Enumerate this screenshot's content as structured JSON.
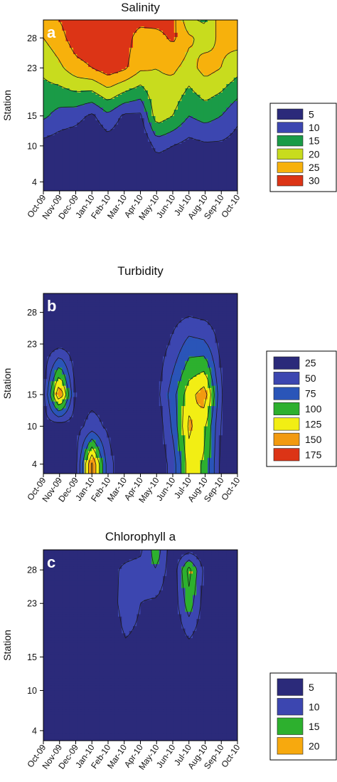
{
  "chart_data": [
    {
      "type": "heatmap",
      "title": "Salinity",
      "panel_label": "a",
      "ylabel": "Station",
      "x_ticks": [
        "Oct-09",
        "Nov-09",
        "Dec-09",
        "Jan-10",
        "Feb-10",
        "Mar-10",
        "Apr-10",
        "May-10",
        "Jun-10",
        "Jul-10",
        "Aug-10",
        "Sep-10",
        "Oct-10"
      ],
      "y_ticks": [
        4,
        10,
        15,
        23,
        28
      ],
      "ylim": [
        2.5,
        31
      ],
      "legend_position": "right",
      "levels": [
        {
          "label": "5",
          "color": "#2b2a7a"
        },
        {
          "label": "10",
          "color": "#3c46b0"
        },
        {
          "label": "15",
          "color": "#1a9b47"
        },
        {
          "label": "20",
          "color": "#c8dc1e"
        },
        {
          "label": "25",
          "color": "#f7b10c"
        },
        {
          "label": "30",
          "color": "#dc3416"
        }
      ],
      "stations": [
        4,
        10,
        15,
        23,
        28,
        31
      ],
      "values": [
        [
          3,
          3,
          3,
          3,
          3,
          3,
          3,
          3,
          3,
          3,
          3,
          3,
          3
        ],
        [
          8,
          7,
          6,
          4,
          7,
          5,
          4,
          12,
          10,
          8,
          9,
          9,
          8
        ],
        [
          16,
          13,
          12,
          9,
          14,
          9,
          9,
          23,
          20,
          15,
          17,
          15,
          11
        ],
        [
          21,
          24,
          28,
          30,
          33,
          31,
          26,
          25,
          26,
          23,
          27,
          25,
          22
        ],
        [
          25,
          28,
          33,
          34,
          33,
          33,
          27,
          28,
          31,
          26,
          23,
          26,
          27
        ],
        [
          28,
          30,
          34,
          35,
          34,
          33,
          32,
          32,
          32,
          21,
          19,
          28,
          30
        ]
      ]
    },
    {
      "type": "heatmap",
      "title": "Turbidity",
      "panel_label": "b",
      "ylabel": "Station",
      "x_ticks": [
        "Oct-09",
        "Nov-09",
        "Dec-09",
        "Jan-10",
        "Feb-10",
        "Mar-10",
        "Apr-10",
        "May-10",
        "Jun-10",
        "Jul-10",
        "Aug-10",
        "Sep-10",
        "Oct-10"
      ],
      "y_ticks": [
        4,
        10,
        15,
        23,
        28
      ],
      "ylim": [
        2.5,
        31
      ],
      "legend_position": "right",
      "levels": [
        {
          "label": "25",
          "color": "#2b2a7a"
        },
        {
          "label": "50",
          "color": "#3c46b0"
        },
        {
          "label": "75",
          "color": "#2a55b8"
        },
        {
          "label": "100",
          "color": "#2db02e"
        },
        {
          "label": "125",
          "color": "#f2ee14"
        },
        {
          "label": "150",
          "color": "#f29a10"
        },
        {
          "label": "175",
          "color": "#dc3416"
        }
      ],
      "stations": [
        4,
        10,
        15,
        23,
        28,
        31
      ],
      "values": [
        [
          30,
          30,
          40,
          180,
          60,
          30,
          25,
          30,
          60,
          140,
          120,
          40,
          30
        ],
        [
          40,
          35,
          40,
          60,
          45,
          35,
          30,
          30,
          80,
          155,
          130,
          45,
          35
        ],
        [
          40,
          180,
          40,
          40,
          40,
          35,
          30,
          40,
          90,
          140,
          165,
          50,
          35
        ],
        [
          35,
          40,
          35,
          35,
          35,
          30,
          30,
          35,
          55,
          85,
          80,
          40,
          30
        ],
        [
          30,
          30,
          30,
          40,
          30,
          30,
          30,
          30,
          40,
          45,
          40,
          35,
          30
        ],
        [
          30,
          30,
          30,
          30,
          30,
          30,
          30,
          30,
          30,
          30,
          30,
          30,
          30
        ]
      ]
    },
    {
      "type": "heatmap",
      "title": "Chlorophyll a",
      "panel_label": "c",
      "ylabel": "Station",
      "x_ticks": [
        "Oct-09",
        "Nov-09",
        "Dec-09",
        "Jan-10",
        "Feb-10",
        "Mar-10",
        "Apr-10",
        "May-10",
        "Jun-10",
        "Jul-10",
        "Aug-10",
        "Sep-10",
        "Oct-10"
      ],
      "y_ticks": [
        4,
        10,
        15,
        23,
        28
      ],
      "ylim": [
        2.5,
        31
      ],
      "legend_position": "right",
      "levels": [
        {
          "label": "5",
          "color": "#2b2a7a"
        },
        {
          "label": "10",
          "color": "#3c46b0"
        },
        {
          "label": "15",
          "color": "#2db02e"
        },
        {
          "label": "20",
          "color": "#f7a90e"
        }
      ],
      "stations": [
        4,
        10,
        15,
        23,
        28,
        31
      ],
      "values": [
        [
          4,
          4,
          4,
          4,
          4,
          4,
          4,
          4,
          4,
          4,
          4,
          4,
          4
        ],
        [
          4,
          6,
          4,
          4,
          4,
          6,
          5,
          4,
          4,
          8,
          5,
          4,
          4
        ],
        [
          5,
          7,
          7,
          5,
          5,
          9,
          9,
          6,
          5,
          6,
          6,
          5,
          4
        ],
        [
          5,
          8,
          8,
          5,
          7,
          12,
          10,
          9,
          6,
          18,
          7,
          5,
          4
        ],
        [
          5,
          8,
          10,
          6,
          8,
          11,
          12,
          15,
          6,
          22,
          8,
          5,
          5
        ],
        [
          6,
          9,
          8,
          6,
          7,
          8,
          9,
          18,
          6,
          8,
          6,
          5,
          5
        ]
      ]
    }
  ]
}
